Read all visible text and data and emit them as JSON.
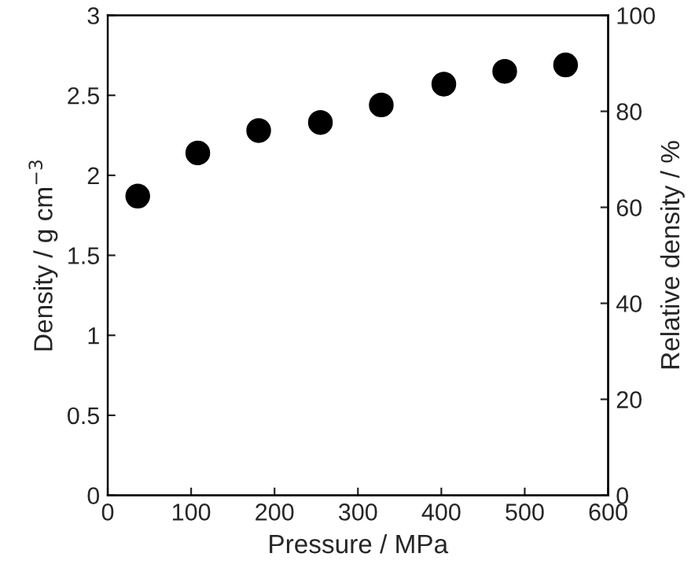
{
  "chart_data": {
    "type": "scatter",
    "xlabel": "Pressure / MPa",
    "ylabel": "Density / g cm$^{−3}$",
    "y2label": "Relative density / %",
    "x": [
      36,
      108,
      181,
      255,
      328,
      403,
      476,
      549
    ],
    "series": [
      {
        "color": "#000000",
        "values": [
          1.87,
          2.14,
          2.28,
          2.33,
          2.44,
          2.57,
          2.65,
          2.69
        ]
      }
    ],
    "xlim": [
      0,
      600
    ],
    "xticks": [
      0,
      100,
      200,
      300,
      400,
      500,
      600
    ],
    "ylim": [
      0,
      3
    ],
    "yticks": [
      0,
      0.5,
      1,
      1.5,
      2,
      2.5,
      3
    ],
    "y2lim": [
      0,
      100
    ],
    "y2ticks": [
      0,
      20,
      40,
      60,
      80,
      100
    ],
    "marker": "circle",
    "grid": false,
    "legend": false
  }
}
